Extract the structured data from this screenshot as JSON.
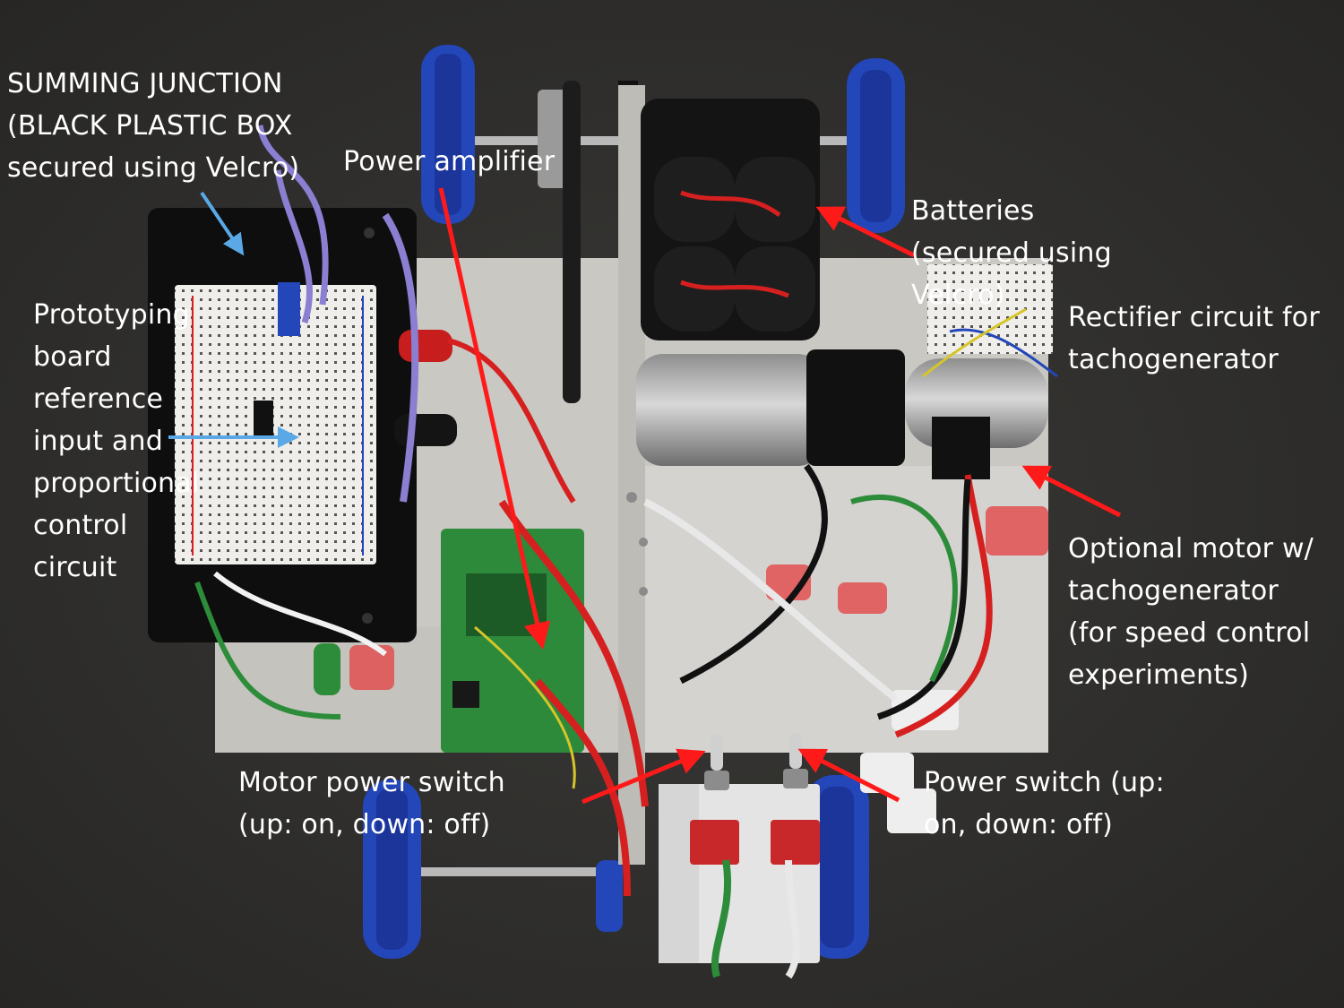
{
  "colors": {
    "background": "#2f2e2c",
    "label_text": "#ffffff",
    "red_arrow": "#ff1a1a",
    "blue_arrow": "#5aa9e6",
    "wheel_blue": "#2346b8",
    "aluminum_plate": "#c9c8c3",
    "black_box": "#0e0e0e",
    "breadboard": "#efeeea",
    "green_pcb": "#2c8a3a",
    "red_block": "#cf2a2a"
  },
  "annotations": {
    "summing_junction": [
      "SUMMING JUNCTION",
      "(BLACK PLASTIC BOX",
      "secured using Velcro)"
    ],
    "power_amplifier": [
      "Power amplifier"
    ],
    "batteries": [
      "Batteries",
      "(secured using",
      "Velcro)"
    ],
    "rectifier": [
      "Rectifier circuit for",
      "tachogenerator"
    ],
    "prototyping_board": [
      "Prototyping",
      "board",
      "reference",
      "input and",
      "proportional",
      "control",
      "circuit"
    ],
    "optional_motor": [
      "Optional motor w/",
      "tachogenerator",
      "(for speed control",
      "experiments)"
    ],
    "motor_power_switch": [
      "Motor power switch",
      "(up: on, down: off)"
    ],
    "power_switch": [
      "Power switch (up:",
      "on, down: off)"
    ]
  },
  "icons": {
    "arrow_icon": "arrow",
    "wheel_icon": "wheel",
    "toggle_switch_icon": "toggle-switch"
  }
}
